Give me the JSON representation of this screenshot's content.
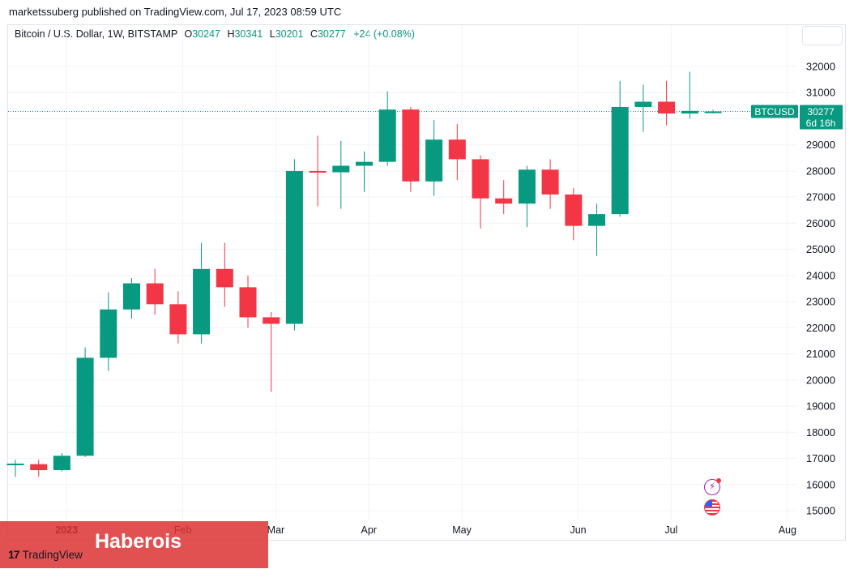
{
  "header": {
    "published": "marketssuberg published on TradingView.com, Jul 17, 2023 08:59 UTC"
  },
  "legend": {
    "symbol": "Bitcoin / U.S. Dollar, 1W, BITSTAMP",
    "o_label": "O",
    "o_value": "30247",
    "h_label": "H",
    "h_value": "30341",
    "l_label": "L",
    "l_value": "30201",
    "c_label": "C",
    "c_value": "30277",
    "change": "+24 (+0.08%)"
  },
  "price_tag": {
    "symbol": "BTCUSD",
    "price": "30277",
    "countdown": "6d 16h"
  },
  "colors": {
    "up": "#089981",
    "down": "#f23645",
    "grid": "#f0f3fa",
    "axis_text": "#131722"
  },
  "watermark": {
    "text": "Haberois"
  },
  "branding": {
    "logo_mark": "17",
    "name": "TradingView"
  },
  "icons": {
    "flash": "lightning-icon",
    "flag": "us-flag-icon"
  },
  "chart_data": {
    "type": "candlestick",
    "title": "Bitcoin / U.S. Dollar, 1W, BITSTAMP",
    "interval": "1W",
    "ylim": [
      14500,
      32700
    ],
    "y_ticks": [
      15000,
      16000,
      17000,
      18000,
      19000,
      20000,
      21000,
      22000,
      23000,
      24000,
      25000,
      26000,
      27000,
      28000,
      29000,
      30000,
      31000,
      32000
    ],
    "y_tick_labels": [
      "15000",
      "16000",
      "17000",
      "18000",
      "19000",
      "20000",
      "21000",
      "22000",
      "23000",
      "24000",
      "25000",
      "26000",
      "27000",
      "28000",
      "29000",
      "30000",
      "31000",
      "32000"
    ],
    "x_labels": [
      {
        "label": "2023",
        "index": 2.2,
        "bold": true
      },
      {
        "label": "Feb",
        "index": 7.2,
        "bold": false
      },
      {
        "label": "Mar",
        "index": 11.2,
        "bold": false
      },
      {
        "label": "Apr",
        "index": 15.2,
        "bold": false
      },
      {
        "label": "May",
        "index": 19.2,
        "bold": false
      },
      {
        "label": "Jun",
        "index": 24.2,
        "bold": false
      },
      {
        "label": "Jul",
        "index": 28.2,
        "bold": false
      },
      {
        "label": "Aug",
        "index": 33.2,
        "bold": false
      }
    ],
    "last_price": 30277,
    "candles": [
      {
        "o": 16750,
        "h": 16950,
        "l": 16300,
        "c": 16800
      },
      {
        "o": 16780,
        "h": 16950,
        "l": 16300,
        "c": 16550
      },
      {
        "o": 16550,
        "h": 17200,
        "l": 16500,
        "c": 17100
      },
      {
        "o": 17100,
        "h": 21250,
        "l": 17050,
        "c": 20850
      },
      {
        "o": 20850,
        "h": 23350,
        "l": 20350,
        "c": 22700
      },
      {
        "o": 22700,
        "h": 23900,
        "l": 22350,
        "c": 23700
      },
      {
        "o": 23700,
        "h": 24250,
        "l": 22500,
        "c": 22900
      },
      {
        "o": 22900,
        "h": 23400,
        "l": 21400,
        "c": 21750
      },
      {
        "o": 21750,
        "h": 25250,
        "l": 21400,
        "c": 24250
      },
      {
        "o": 24250,
        "h": 25250,
        "l": 22800,
        "c": 23550
      },
      {
        "o": 23550,
        "h": 24000,
        "l": 22000,
        "c": 22400
      },
      {
        "o": 22400,
        "h": 22600,
        "l": 19550,
        "c": 22150
      },
      {
        "o": 22150,
        "h": 28450,
        "l": 21900,
        "c": 28000
      },
      {
        "o": 28000,
        "h": 29350,
        "l": 26650,
        "c": 27950
      },
      {
        "o": 27950,
        "h": 29150,
        "l": 26550,
        "c": 28200
      },
      {
        "o": 28200,
        "h": 28750,
        "l": 27200,
        "c": 28350
      },
      {
        "o": 28350,
        "h": 31050,
        "l": 28200,
        "c": 30350
      },
      {
        "o": 30350,
        "h": 30450,
        "l": 27200,
        "c": 27600
      },
      {
        "o": 27600,
        "h": 29950,
        "l": 27050,
        "c": 29200
      },
      {
        "o": 29200,
        "h": 29800,
        "l": 27650,
        "c": 28450
      },
      {
        "o": 28450,
        "h": 28600,
        "l": 25800,
        "c": 26950
      },
      {
        "o": 26950,
        "h": 27650,
        "l": 26350,
        "c": 26750
      },
      {
        "o": 26750,
        "h": 28200,
        "l": 25850,
        "c": 28050
      },
      {
        "o": 28050,
        "h": 28450,
        "l": 26550,
        "c": 27100
      },
      {
        "o": 27100,
        "h": 27350,
        "l": 25350,
        "c": 25900
      },
      {
        "o": 25900,
        "h": 26750,
        "l": 24750,
        "c": 26350
      },
      {
        "o": 26350,
        "h": 31450,
        "l": 26250,
        "c": 30450
      },
      {
        "o": 30450,
        "h": 31300,
        "l": 29500,
        "c": 30650
      },
      {
        "o": 30650,
        "h": 31450,
        "l": 29750,
        "c": 30200
      },
      {
        "o": 30200,
        "h": 31800,
        "l": 30000,
        "c": 30300
      },
      {
        "o": 30247,
        "h": 30341,
        "l": 30201,
        "c": 30277
      }
    ]
  }
}
